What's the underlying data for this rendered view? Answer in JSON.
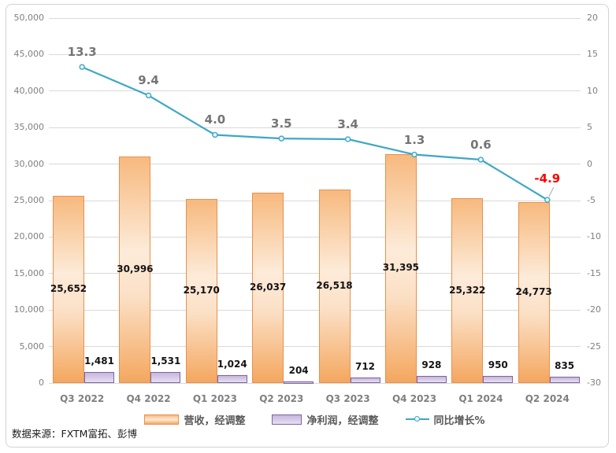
{
  "source_note": "数据来源：FXTM富拓、彭博",
  "legend": {
    "items": [
      {
        "label": "营收，经调整",
        "swatch": "bar-orange"
      },
      {
        "label": "净利润，经调整",
        "swatch": "bar-purple"
      },
      {
        "label": "同比增长%",
        "swatch": "line-teal"
      }
    ]
  },
  "colors": {
    "bar1_border": "#E8914E",
    "bar2_border": "#7E63A5",
    "line": "#3FA7C6",
    "marker_fill": "#E9F6FA",
    "leader": "#A6A6A6",
    "gridline": "#D9D9D9",
    "axis_label": "#808080",
    "negative_label": "#FF0000"
  },
  "chart_data": {
    "type": "bar",
    "subtype": "combo-bar-line",
    "categories": [
      "Q3 2022",
      "Q4 2022",
      "Q1 2023",
      "Q2 2023",
      "Q3 2023",
      "Q4 2023",
      "Q1 2024",
      "Q2 2024"
    ],
    "series": [
      {
        "name": "营收，经调整",
        "type": "bar",
        "axis": "left",
        "values": [
          25652,
          30996,
          25170,
          26037,
          26518,
          31395,
          25322,
          24773
        ],
        "labels": [
          "25,652",
          "30,996",
          "25,170",
          "26,037",
          "26,518",
          "31,395",
          "25,322",
          "24,773"
        ]
      },
      {
        "name": "净利润，经调整",
        "type": "bar",
        "axis": "left",
        "values": [
          1481,
          1531,
          1024,
          204,
          712,
          928,
          950,
          835
        ],
        "labels": [
          "1,481",
          "1,531",
          "1,024",
          "204",
          "712",
          "928",
          "950",
          "835"
        ]
      },
      {
        "name": "同比增长%",
        "type": "line",
        "axis": "right",
        "values": [
          13.3,
          9.4,
          4.0,
          3.5,
          3.4,
          1.3,
          0.6,
          -4.9
        ],
        "labels": [
          "13.3",
          "9.4",
          "4.0",
          "3.5",
          "3.4",
          "1.3",
          "0.6",
          "-4.9"
        ]
      }
    ],
    "left_axis": {
      "min": 0,
      "max": 50000,
      "step": 5000,
      "tick_labels": [
        "50,000",
        "45,000",
        "40,000",
        "35,000",
        "30,000",
        "25,000",
        "20,000",
        "15,000",
        "10,000",
        "5,000",
        "0"
      ]
    },
    "right_axis": {
      "min": -30,
      "max": 20,
      "step": 5,
      "tick_labels": [
        "20",
        "15",
        "10",
        "5",
        "0",
        "-5",
        "-10",
        "-15",
        "-20",
        "-25",
        "-30"
      ]
    },
    "grid": true,
    "legend_position": "bottom"
  }
}
